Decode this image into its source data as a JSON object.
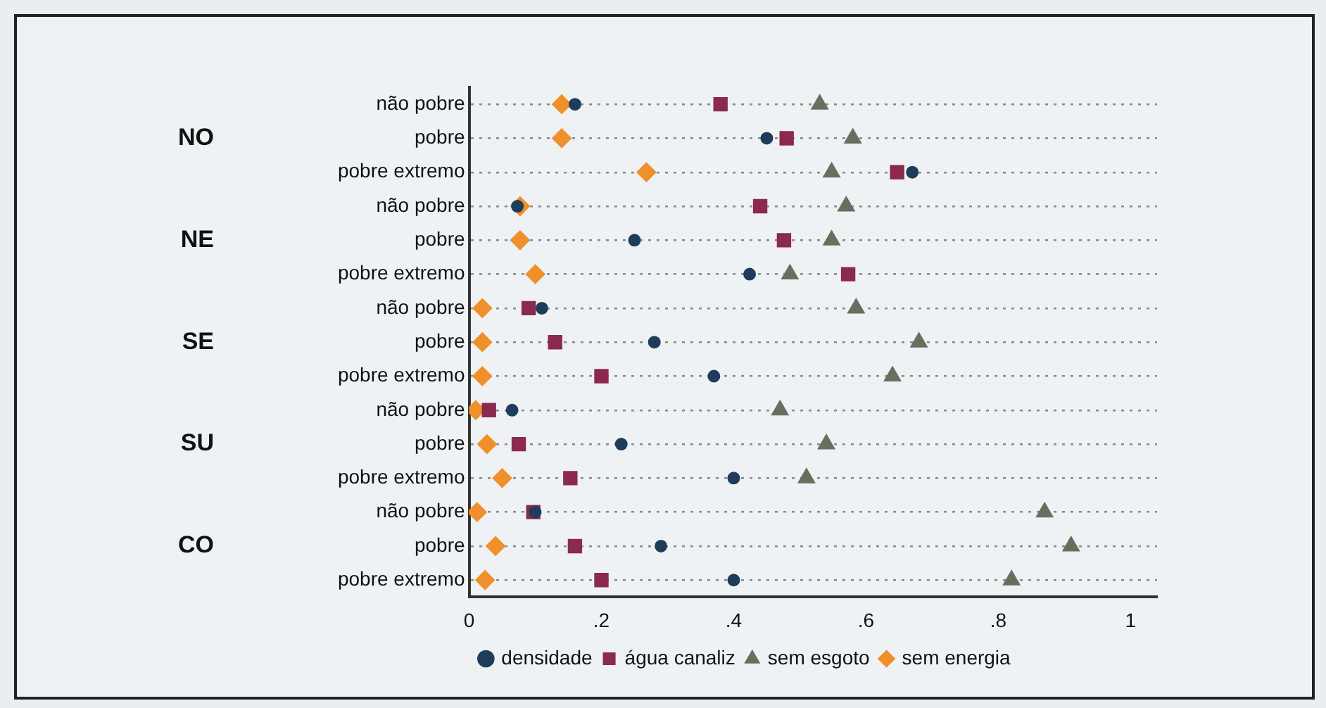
{
  "chart_data": {
    "type": "scatter",
    "orientation": "horizontal",
    "categories": [
      "não pobre",
      "pobre",
      "pobre extremo",
      "não pobre",
      "pobre",
      "pobre extremo",
      "não pobre",
      "pobre",
      "pobre extremo",
      "não pobre",
      "pobre",
      "pobre extremo",
      "não pobre",
      "pobre",
      "pobre extremo"
    ],
    "annotations": [
      "NO",
      "NE",
      "SE",
      "SU",
      "CO"
    ],
    "series": [
      {
        "name": "densidade",
        "color": "#1f3d5a",
        "marker": "circle",
        "values": [
          0.16,
          0.45,
          0.67,
          0.073,
          0.25,
          0.424,
          0.11,
          0.28,
          0.37,
          0.065,
          0.23,
          0.4,
          0.1,
          0.29,
          0.4
        ]
      },
      {
        "name": "água canaliz",
        "color": "#8b2a4e",
        "marker": "square",
        "values": [
          0.38,
          0.48,
          0.647,
          0.44,
          0.476,
          0.573,
          0.09,
          0.13,
          0.2,
          0.03,
          0.075,
          0.153,
          0.097,
          0.16,
          0.2
        ]
      },
      {
        "name": "sem esgoto",
        "color": "#66705f",
        "marker": "triangle",
        "values": [
          0.53,
          0.58,
          0.548,
          0.57,
          0.548,
          0.485,
          0.585,
          0.68,
          0.64,
          0.47,
          0.54,
          0.51,
          0.87,
          0.91,
          0.82
        ]
      },
      {
        "name": "sem energia",
        "color": "#f0902a",
        "marker": "diamond",
        "values": [
          0.14,
          0.14,
          0.268,
          0.077,
          0.077,
          0.1,
          0.02,
          0.02,
          0.02,
          0.01,
          0.027,
          0.05,
          0.012,
          0.04,
          0.024
        ]
      }
    ],
    "xlim": [
      0,
      1.04
    ],
    "xticks": [
      {
        "value": 0,
        "label": "0"
      },
      {
        "value": 0.2,
        "label": ".2"
      },
      {
        "value": 0.4,
        "label": ".4"
      },
      {
        "value": 0.6,
        "label": ".6"
      },
      {
        "value": 0.8,
        "label": ".8"
      },
      {
        "value": 1,
        "label": "1"
      }
    ],
    "grid": "y",
    "legend": "bottom"
  }
}
